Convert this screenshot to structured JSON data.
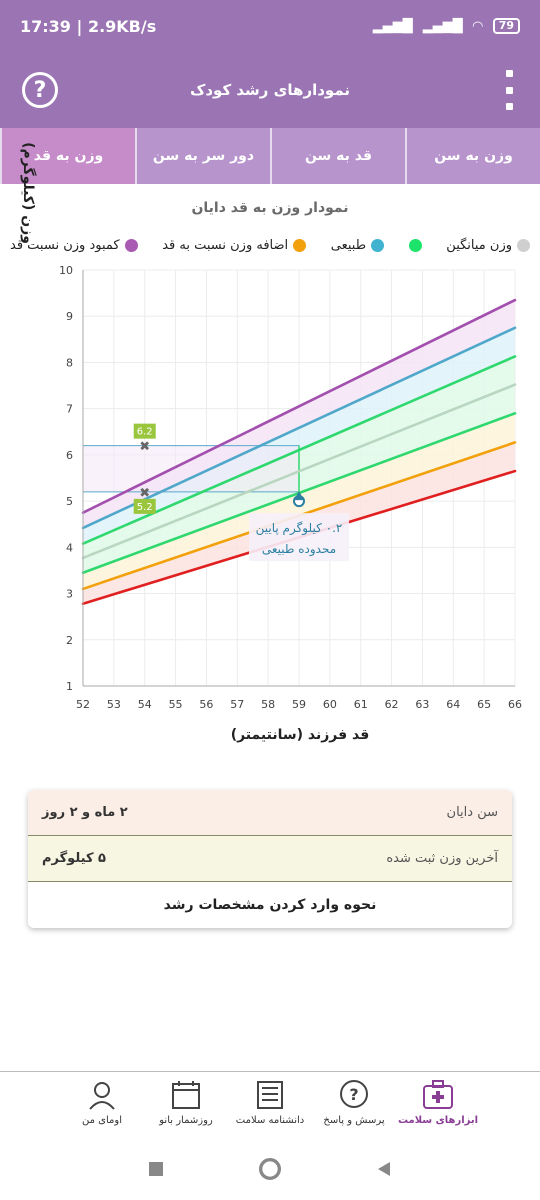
{
  "status": {
    "time": "17:39",
    "speed": "2.9KB/s",
    "battery": "79"
  },
  "header": {
    "title": "نمودارهای رشد کودک",
    "help_icon": "question-circle-icon",
    "menu_icon": "more-vertical-icon"
  },
  "tabs": [
    {
      "label": "وزن به سن",
      "active": false
    },
    {
      "label": "قد به سن",
      "active": false
    },
    {
      "label": "دور سر به سن",
      "active": false
    },
    {
      "label": "وزن به قد",
      "active": true
    }
  ],
  "chart_title": "نمودار وزن به قد دایان",
  "legend": [
    {
      "label": "کمبود وزن نسبت قد",
      "color": "#a95bb3"
    },
    {
      "label": "اضافه وزن نسبت به قد",
      "color": "#f2a10c"
    },
    {
      "label": "طبیعی",
      "color": "#3fb3cf"
    },
    {
      "label": "",
      "color": "#1ee36b"
    },
    {
      "label": "وزن میانگین",
      "color": "#cfcfcf"
    }
  ],
  "legend_text": {
    "kambod": "کمبود وزن نسبت قد",
    "ezafe": "اضافه وزن نسبت به قد",
    "tabiei": "طبیعی",
    "miangin": "وزن میانگین"
  },
  "chart_data": {
    "type": "line",
    "xlabel": "قد فرزند (سانتیمتر)",
    "ylabel": "وزن (کیلوگرم)",
    "xlim": [
      52,
      66
    ],
    "ylim": [
      1,
      10
    ],
    "x_ticks": [
      "52",
      "53",
      "54",
      "55",
      "56",
      "57",
      "58",
      "59",
      "60",
      "61",
      "62",
      "63",
      "64",
      "65",
      "66"
    ],
    "y_ticks": [
      "1",
      "2",
      "3",
      "4",
      "5",
      "6",
      "7",
      "8",
      "9",
      "10"
    ],
    "x": [
      52,
      66
    ],
    "series": [
      {
        "color": "#a24fae",
        "values": [
          4.75,
          9.35
        ]
      },
      {
        "color": "#4fa8c9",
        "values": [
          4.42,
          8.75
        ]
      },
      {
        "color": "#2fd86e",
        "values": [
          4.08,
          8.13
        ]
      },
      {
        "color": "#b9d6c0",
        "values": [
          3.77,
          7.52
        ]
      },
      {
        "color": "#2fd86e",
        "values": [
          3.45,
          6.9
        ]
      },
      {
        "color": "#f2a10c",
        "values": [
          3.1,
          6.27
        ]
      },
      {
        "color": "#e02020",
        "values": [
          2.78,
          5.65
        ]
      }
    ],
    "markers": [
      {
        "x": 54,
        "y": 6.2,
        "label": "6.2"
      },
      {
        "x": 54,
        "y": 5.2,
        "label": "5.2"
      }
    ],
    "child_point": {
      "x": 59,
      "y": 5.0
    },
    "reference_box": {
      "x0": 52,
      "x1": 59,
      "y0": 5.2,
      "y1": 6.2
    },
    "annotation": "۰.۲ کیلوگرم پایین محدوده طبیعی"
  },
  "info": {
    "age_label": "سن دایان",
    "age_value": "۲ ماه و ۲ روز",
    "weight_label": "آخرین وزن ثبت شده",
    "weight_value": "۵ کیلوگرم",
    "link": "نحوه وارد کردن مشخصات رشد"
  },
  "bottom_nav": [
    {
      "label": "ابزارهای سلامت",
      "icon": "medical-kit-icon",
      "active": true
    },
    {
      "label": "پرسش و پاسخ",
      "icon": "question-bubble-icon",
      "active": false
    },
    {
      "label": "دانشنامه سلامت",
      "icon": "newspaper-icon",
      "active": false
    },
    {
      "label": "روزشمار بانو",
      "icon": "calendar-icon",
      "active": false
    },
    {
      "label": "اومای من",
      "icon": "user-avatar-icon",
      "active": false
    }
  ]
}
